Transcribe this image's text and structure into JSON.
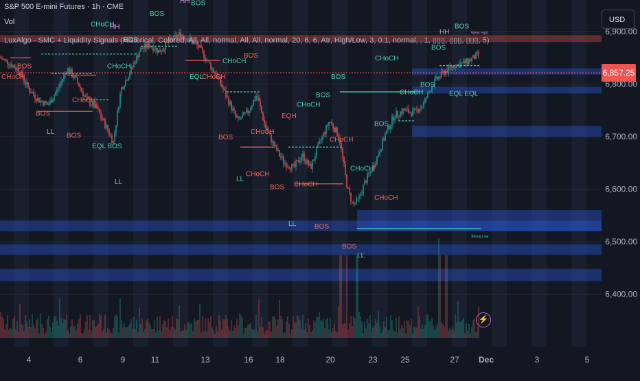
{
  "header": {
    "symbol": "S&P 500 E-mini Futures · 1h · CME",
    "vol_label": "Vol",
    "indicator": "LuxAlgo - SMC + Liquidity Signals (Historical, Colored, All, All, normal, All, All, normal, 20, 6, 6, Atr, High/Low, 3, 0.1, normal, , 1, ▯▯▯, ▯▯▯, ▯▯▯, 5)"
  },
  "toolbar": {
    "currency": "USD"
  },
  "colors": {
    "bg": "#131722",
    "up": "#26a69a",
    "down": "#ef5350",
    "struct_bull": "#4dd0b1",
    "struct_bear": "#f0625a",
    "liquidity": "#1c3b8a",
    "purple": "#ba68c8",
    "axis_text": "#b2b5be"
  },
  "chart_data": {
    "type": "candlestick",
    "y_axis": {
      "ticks": [
        "6,900.00",
        "6,800.00",
        "6,700.00",
        "6,600.00",
        "6,500.00",
        "6,400.00"
      ],
      "tick_values": [
        6900,
        6800,
        6700,
        6600,
        6500,
        6400
      ],
      "ylim": [
        6300,
        6960
      ]
    },
    "x_axis": {
      "labels": [
        "4",
        "6",
        "9",
        "11",
        "13",
        "16",
        "18",
        "20",
        "23",
        "25",
        "27",
        "Dec",
        "3",
        "5"
      ]
    },
    "last_price": {
      "value": 6857.25,
      "label": "6,857.25"
    },
    "price_path": [
      [
        0,
        6850
      ],
      [
        14,
        6840
      ],
      [
        28,
        6825
      ],
      [
        42,
        6790
      ],
      [
        56,
        6770
      ],
      [
        70,
        6760
      ],
      [
        84,
        6790
      ],
      [
        98,
        6830
      ],
      [
        112,
        6805
      ],
      [
        126,
        6770
      ],
      [
        140,
        6755
      ],
      [
        154,
        6720
      ],
      [
        165,
        6690
      ],
      [
        176,
        6790
      ],
      [
        190,
        6825
      ],
      [
        204,
        6865
      ],
      [
        218,
        6875
      ],
      [
        232,
        6862
      ],
      [
        246,
        6880
      ],
      [
        262,
        6895
      ],
      [
        276,
        6885
      ],
      [
        290,
        6870
      ],
      [
        304,
        6840
      ],
      [
        318,
        6810
      ],
      [
        332,
        6770
      ],
      [
        346,
        6730
      ],
      [
        360,
        6745
      ],
      [
        374,
        6780
      ],
      [
        386,
        6720
      ],
      [
        400,
        6680
      ],
      [
        414,
        6650
      ],
      [
        428,
        6640
      ],
      [
        440,
        6665
      ],
      [
        452,
        6640
      ],
      [
        466,
        6690
      ],
      [
        480,
        6730
      ],
      [
        494,
        6700
      ],
      [
        506,
        6600
      ],
      [
        514,
        6570
      ],
      [
        522,
        6580
      ],
      [
        532,
        6615
      ],
      [
        546,
        6650
      ],
      [
        560,
        6700
      ],
      [
        574,
        6740
      ],
      [
        588,
        6750
      ],
      [
        602,
        6745
      ],
      [
        616,
        6760
      ],
      [
        630,
        6800
      ],
      [
        644,
        6820
      ],
      [
        660,
        6835
      ],
      [
        676,
        6840
      ],
      [
        690,
        6850
      ],
      [
        698,
        6857
      ]
    ],
    "volume_spikes": [
      496,
      505,
      520,
      640,
      650
    ],
    "liquidity_zones": [
      {
        "y1": 6893,
        "y2": 6880,
        "x1": 0,
        "x2": 876,
        "color": "red"
      },
      {
        "y1": 6830,
        "y2": 6818,
        "x1": 600,
        "x2": 876,
        "color": "blue"
      },
      {
        "y1": 6795,
        "y2": 6782,
        "x1": 600,
        "x2": 876,
        "color": "blue"
      },
      {
        "y1": 6720,
        "y2": 6700,
        "x1": 600,
        "x2": 876,
        "color": "blue"
      },
      {
        "y1": 6560,
        "y2": 6520,
        "x1": 520,
        "x2": 876,
        "color": "blue"
      },
      {
        "y1": 6540,
        "y2": 6520,
        "x1": 0,
        "x2": 876,
        "color": "blue"
      },
      {
        "y1": 6495,
        "y2": 6475,
        "x1": 0,
        "x2": 876,
        "color": "blue"
      },
      {
        "y1": 6448,
        "y2": 6425,
        "x1": 0,
        "x2": 876,
        "color": "blue"
      }
    ],
    "structure_lines": [
      {
        "x1": 60,
        "x2": 200,
        "y": 6857,
        "dir": "bull",
        "dashed": true
      },
      {
        "x1": 15,
        "x2": 45,
        "y": 6850,
        "dir": "bear",
        "dashed": false
      },
      {
        "x1": 75,
        "x2": 135,
        "y": 6820,
        "dir": "bull",
        "dashed": true
      },
      {
        "x1": 55,
        "x2": 135,
        "y": 6748,
        "dir": "bear",
        "dashed": false
      },
      {
        "x1": 100,
        "x2": 140,
        "y": 6817,
        "dir": "bear",
        "dashed": false
      },
      {
        "x1": 120,
        "x2": 160,
        "y": 6770,
        "dir": "bull",
        "dashed": true
      },
      {
        "x1": 205,
        "x2": 260,
        "y": 6872,
        "dir": "bull",
        "dashed": true
      },
      {
        "x1": 270,
        "x2": 320,
        "y": 6845,
        "dir": "bear",
        "dashed": false
      },
      {
        "x1": 330,
        "x2": 380,
        "y": 6785,
        "dir": "bull",
        "dashed": true
      },
      {
        "x1": 350,
        "x2": 400,
        "y": 6680,
        "dir": "bear",
        "dashed": false
      },
      {
        "x1": 420,
        "x2": 500,
        "y": 6680,
        "dir": "bull",
        "dashed": true
      },
      {
        "x1": 430,
        "x2": 500,
        "y": 6610,
        "dir": "bear",
        "dashed": false
      },
      {
        "x1": 495,
        "x2": 610,
        "y": 6785,
        "dir": "bull",
        "dashed": false
      },
      {
        "x1": 520,
        "x2": 700,
        "y": 6525,
        "dir": "bull",
        "dashed": false
      },
      {
        "x1": 580,
        "x2": 605,
        "y": 6730,
        "dir": "bull",
        "dashed": true
      },
      {
        "x1": 640,
        "x2": 700,
        "y": 6835,
        "dir": "bull",
        "dashed": true
      }
    ],
    "annotations": [
      {
        "text": "BOS",
        "x": 278,
        "y": 6950,
        "dir": "bull"
      },
      {
        "text": "HH",
        "x": 262,
        "y": 6955,
        "dir": "purple"
      },
      {
        "text": "BOS",
        "x": 218,
        "y": 6930,
        "dir": "bull"
      },
      {
        "text": "HH",
        "x": 160,
        "y": 6905,
        "dir": "purple"
      },
      {
        "text": "CHoCH",
        "x": 132,
        "y": 6910,
        "dir": "bull"
      },
      {
        "text": "BOS",
        "x": 180,
        "y": 6880,
        "dir": "bull"
      },
      {
        "text": "CHoCH",
        "x": 2,
        "y": 6810,
        "dir": "bear"
      },
      {
        "text": "BOS",
        "x": 25,
        "y": 6830,
        "dir": "bear"
      },
      {
        "text": "CHoCH",
        "x": 156,
        "y": 6830,
        "dir": "bull"
      },
      {
        "text": "EQL",
        "x": 276,
        "y": 6810,
        "dir": "bull"
      },
      {
        "text": "CHoCH",
        "x": 294,
        "y": 6810,
        "dir": "bear"
      },
      {
        "text": "CHoCH",
        "x": 324,
        "y": 6840,
        "dir": "bull"
      },
      {
        "text": "BOS",
        "x": 355,
        "y": 6850,
        "dir": "bear"
      },
      {
        "text": "CHoCH",
        "x": 105,
        "y": 6765,
        "dir": "bear"
      },
      {
        "text": "BOS",
        "x": 52,
        "y": 6740,
        "dir": "bear"
      },
      {
        "text": "LL",
        "x": 68,
        "y": 6705,
        "dir": "bull"
      },
      {
        "text": "BOS",
        "x": 97,
        "y": 6698,
        "dir": "bear"
      },
      {
        "text": "EQL BOS",
        "x": 134,
        "y": 6678,
        "dir": "bull"
      },
      {
        "text": "LL",
        "x": 167,
        "y": 6610,
        "dir": "bull"
      },
      {
        "text": "BOS",
        "x": 318,
        "y": 6695,
        "dir": "bear"
      },
      {
        "text": "CHoCH",
        "x": 365,
        "y": 6705,
        "dir": "bear"
      },
      {
        "text": "EQH",
        "x": 410,
        "y": 6735,
        "dir": "bear"
      },
      {
        "text": "CHoCH",
        "x": 432,
        "y": 6757,
        "dir": "bull"
      },
      {
        "text": "BOS",
        "x": 460,
        "y": 6775,
        "dir": "bull"
      },
      {
        "text": "BOS",
        "x": 482,
        "y": 6810,
        "dir": "bull"
      },
      {
        "text": "CHoCH",
        "x": 480,
        "y": 6690,
        "dir": "bear"
      },
      {
        "text": "LL",
        "x": 344,
        "y": 6615,
        "dir": "bull"
      },
      {
        "text": "CHoCH",
        "x": 358,
        "y": 6625,
        "dir": "bear"
      },
      {
        "text": "BOS",
        "x": 393,
        "y": 6600,
        "dir": "bear"
      },
      {
        "text": "CHoCH",
        "x": 428,
        "y": 6605,
        "dir": "bear"
      },
      {
        "text": "LL",
        "x": 420,
        "y": 6530,
        "dir": "bull"
      },
      {
        "text": "BOS",
        "x": 458,
        "y": 6525,
        "dir": "bear"
      },
      {
        "text": "BOS",
        "x": 498,
        "y": 6487,
        "dir": "bear"
      },
      {
        "text": "LL",
        "x": 520,
        "y": 6470,
        "dir": "bull"
      },
      {
        "text": "CHoCH",
        "x": 510,
        "y": 6635,
        "dir": "bull"
      },
      {
        "text": "CHoCH",
        "x": 545,
        "y": 6580,
        "dir": "bear"
      },
      {
        "text": "BOS",
        "x": 545,
        "y": 6720,
        "dir": "bull"
      },
      {
        "text": "CHoCH",
        "x": 546,
        "y": 6845,
        "dir": "bull"
      },
      {
        "text": "CHoCH",
        "x": 582,
        "y": 6780,
        "dir": "bull"
      },
      {
        "text": "BOS",
        "x": 612,
        "y": 6795,
        "dir": "bull"
      },
      {
        "text": "BOS",
        "x": 628,
        "y": 6865,
        "dir": "bull"
      },
      {
        "text": "EQL EQL",
        "x": 654,
        "y": 6778,
        "dir": "bull"
      },
      {
        "text": "HH",
        "x": 640,
        "y": 6895,
        "dir": "purple"
      },
      {
        "text": "BOS",
        "x": 662,
        "y": 6906,
        "dir": "bull"
      },
      {
        "text": "Strong Low",
        "x": 686,
        "y": 6508,
        "dir": "bull",
        "small": true
      },
      {
        "text": "Weak High",
        "x": 686,
        "y": 6895,
        "dir": "purple",
        "small": true
      }
    ]
  }
}
